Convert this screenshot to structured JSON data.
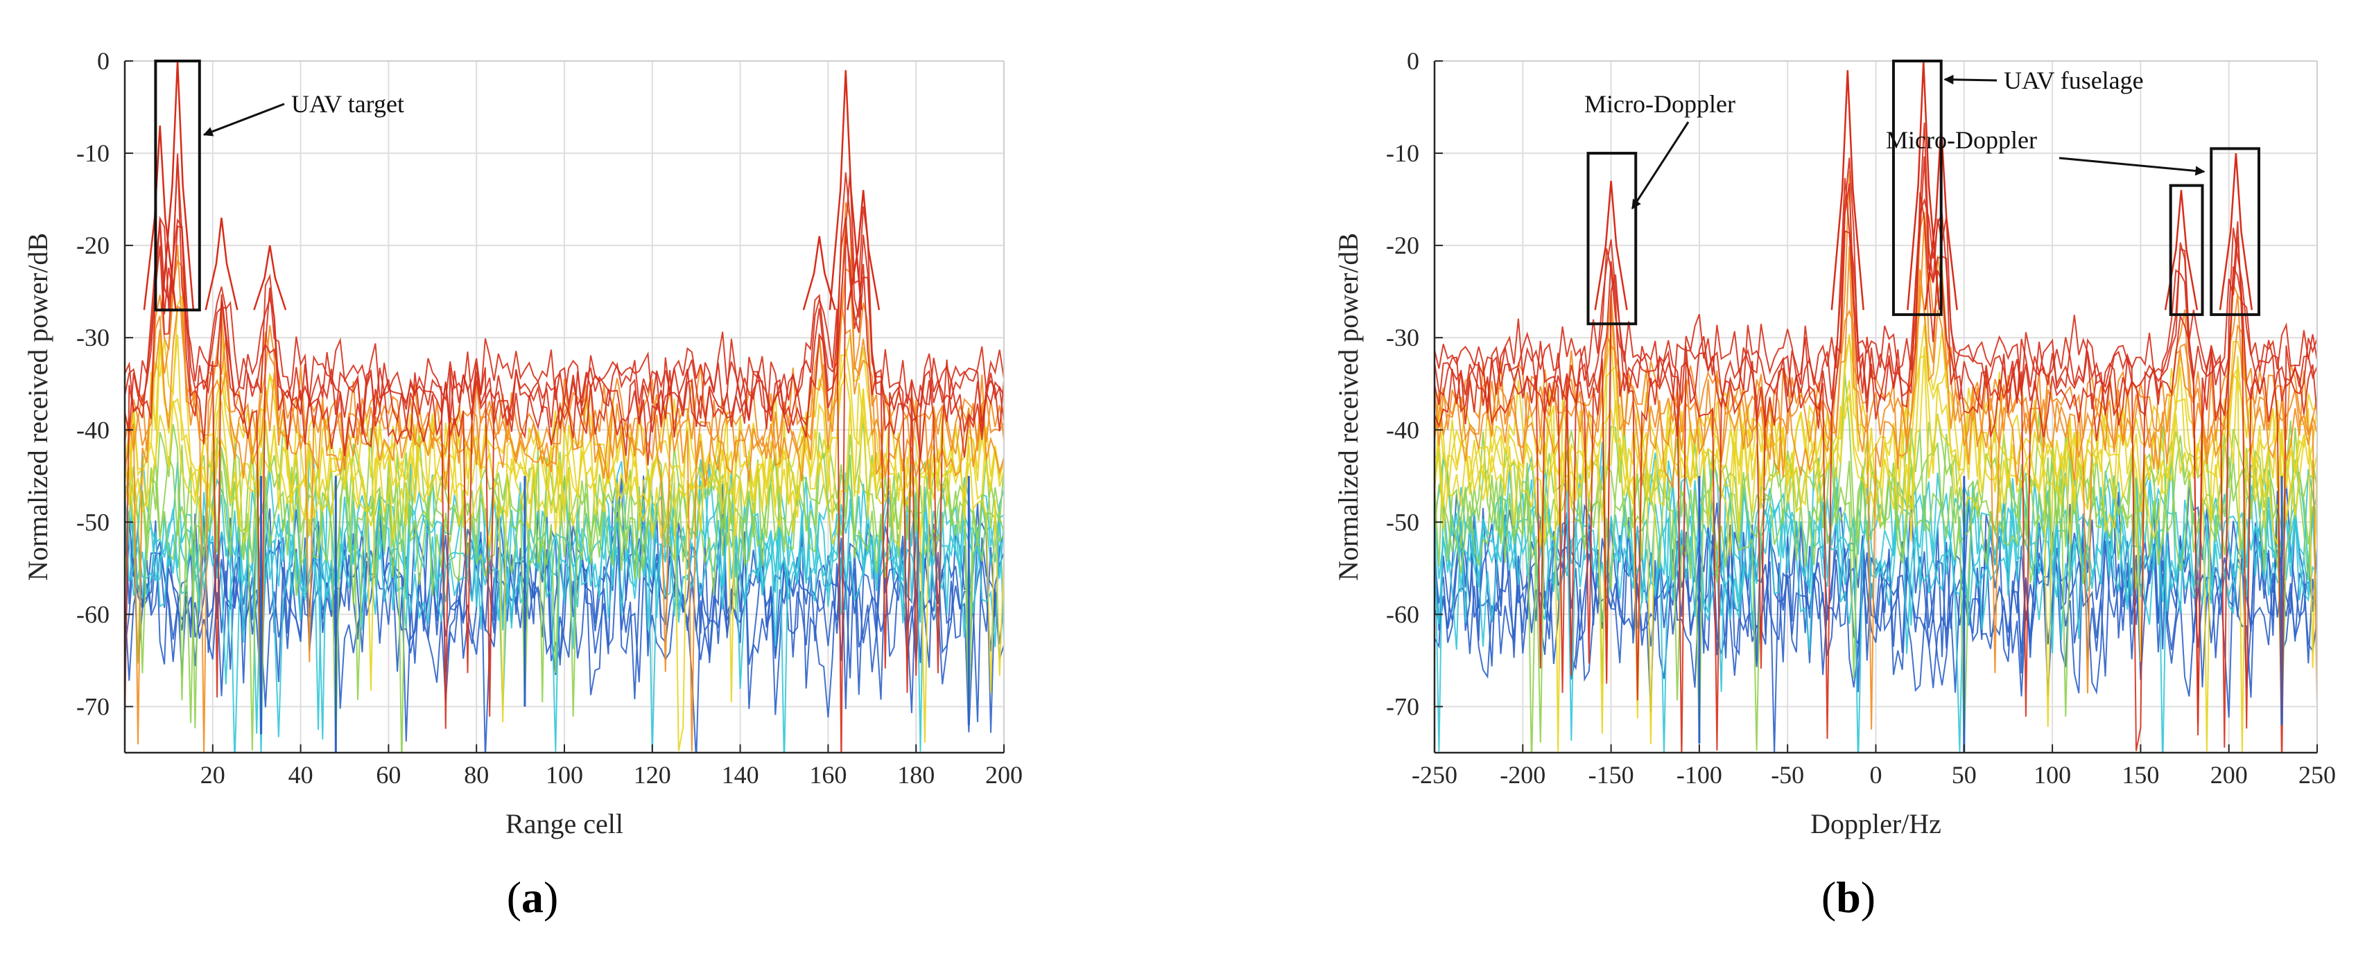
{
  "chart_data": [
    {
      "type": "line",
      "panel_label": "a",
      "title": "",
      "xlabel": "Range cell",
      "ylabel": "Normalized received power/dB",
      "xlim": [
        0,
        200
      ],
      "ylim": [
        -75,
        0
      ],
      "xticks": [
        20,
        40,
        60,
        80,
        100,
        120,
        140,
        160,
        180,
        200
      ],
      "yticks": [
        0,
        -10,
        -20,
        -30,
        -40,
        -50,
        -60,
        -70
      ],
      "grid": true,
      "series_description": "Many overlaid noisy traces coloured from red/orange (strong) through yellow and green to blue (weak)",
      "noise_floor_dB": [
        -30,
        -55
      ],
      "peaks": [
        {
          "x": 8,
          "y": -7
        },
        {
          "x": 12,
          "y": 0
        },
        {
          "x": 22,
          "y": -17
        },
        {
          "x": 33,
          "y": -20
        },
        {
          "x": 158,
          "y": -19
        },
        {
          "x": 164,
          "y": -1
        },
        {
          "x": 168,
          "y": -14
        }
      ],
      "dips": [
        {
          "x": 31,
          "y": -73
        },
        {
          "x": 48,
          "y": -75
        },
        {
          "x": 91,
          "y": -70
        },
        {
          "x": 192,
          "y": -72
        }
      ],
      "highlight_boxes": [
        {
          "x0": 7,
          "x1": 17,
          "y0": 0,
          "y1": -27
        }
      ],
      "annotations": [
        {
          "text": "UAV target",
          "arrow_to": {
            "x": 18,
            "y": -8
          }
        }
      ]
    },
    {
      "type": "line",
      "panel_label": "b",
      "title": "",
      "xlabel": "Doppler/Hz",
      "ylabel": "Normalized received power/dB",
      "xlim": [
        -250,
        250
      ],
      "ylim": [
        -75,
        0
      ],
      "xticks": [
        -250,
        -200,
        -150,
        -100,
        -50,
        0,
        50,
        100,
        150,
        200,
        250
      ],
      "yticks": [
        0,
        -10,
        -20,
        -30,
        -40,
        -50,
        -60,
        -70
      ],
      "grid": true,
      "series_description": "Many overlaid noisy traces coloured from red/orange (strong) through yellow and green to blue (weak)",
      "noise_floor_dB": [
        -28,
        -55
      ],
      "peaks": [
        {
          "x": -150,
          "y": -13
        },
        {
          "x": -16,
          "y": -1
        },
        {
          "x": 27,
          "y": 0
        },
        {
          "x": 37,
          "y": -7
        },
        {
          "x": 173,
          "y": -14
        },
        {
          "x": 204,
          "y": -10
        }
      ],
      "dips": [
        {
          "x": -100,
          "y": -74
        },
        {
          "x": 50,
          "y": -75
        },
        {
          "x": 230,
          "y": -72
        }
      ],
      "highlight_boxes": [
        {
          "x0": -163,
          "x1": -136,
          "y0": -10,
          "y1": -28.5
        },
        {
          "x0": 10,
          "x1": 37,
          "y0": 0,
          "y1": -27.5
        },
        {
          "x0": 167,
          "x1": 185,
          "y0": -13.5,
          "y1": -27.5
        },
        {
          "x0": 190,
          "x1": 217,
          "y0": -9.5,
          "y1": -27.5
        }
      ],
      "annotations": [
        {
          "text": "Micro-Doppler",
          "arrow_to": {
            "x": -138,
            "y": -16
          }
        },
        {
          "text": "UAV fuselage",
          "arrow_to": {
            "x": 39,
            "y": -2
          }
        },
        {
          "text": "Micro-Doppler",
          "arrow_to": {
            "x": 186,
            "y": -12
          }
        }
      ]
    }
  ],
  "colors": {
    "red": "#d62d1a",
    "orange": "#f28c1e",
    "yellow": "#e8d41f",
    "green": "#8fd14f",
    "cyan": "#34c6d8",
    "blue": "#2c62c9",
    "grid": "#dedede",
    "axis": "#262626"
  }
}
